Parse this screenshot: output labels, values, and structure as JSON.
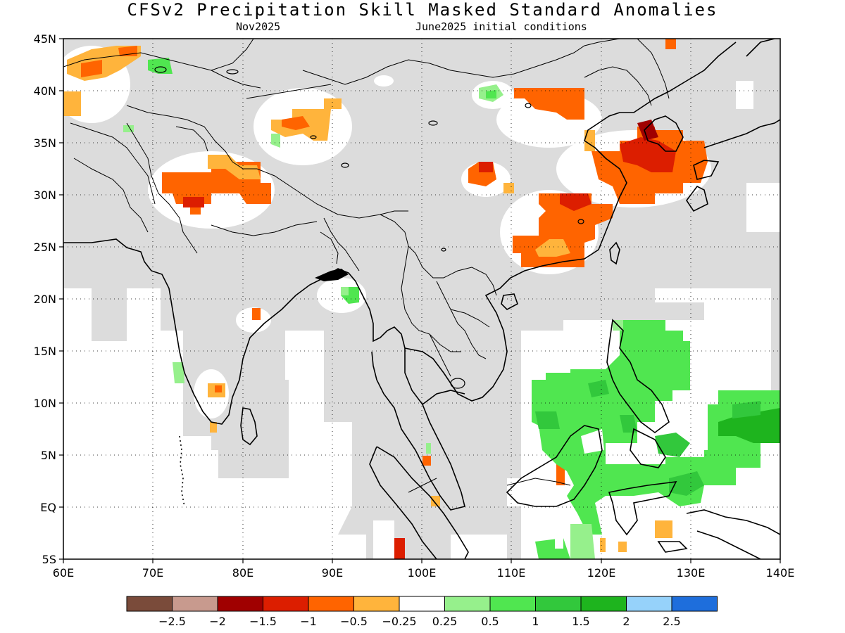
{
  "title": "CFSv2 Precipitation Skill Masked Standard Anomalies",
  "subtitle_left": "Nov2025",
  "subtitle_right": "June2025 initial conditions",
  "axes": {
    "lon_labels": [
      "60E",
      "70E",
      "80E",
      "90E",
      "100E",
      "110E",
      "120E",
      "130E",
      "140E"
    ],
    "lat_labels": [
      "45N",
      "40N",
      "35N",
      "30N",
      "25N",
      "20N",
      "15N",
      "10N",
      "5N",
      "EQ",
      "5S"
    ]
  },
  "colors": {
    "masked": "#dcdcdc",
    "land_outline": "#000000",
    "brown_dark": "#7a4b3a",
    "brown_light": "#c89a8e",
    "red_dark": "#a00000",
    "red": "#dc1e00",
    "orange": "#ff6400",
    "light_orange": "#ffb43c",
    "white": "#ffffff",
    "light_green": "#96f08c",
    "green": "#50e650",
    "mid_green": "#32c83c",
    "dark_green": "#1eb41e",
    "light_blue": "#96d2fa",
    "blue": "#1e6edc"
  },
  "colorbar": {
    "swatches": [
      "#7a4b3a",
      "#c89a8e",
      "#a00000",
      "#dc1e00",
      "#ff6400",
      "#ffb43c",
      "#ffffff",
      "#96f08c",
      "#50e650",
      "#32c83c",
      "#1eb41e",
      "#96d2fa",
      "#1e6edc"
    ],
    "labels": [
      "−2.5",
      "−2",
      "−1.5",
      "−1",
      "−0.5",
      "−0.25",
      "0.25",
      "0.5",
      "1",
      "1.5",
      "2",
      "2.5"
    ]
  }
}
